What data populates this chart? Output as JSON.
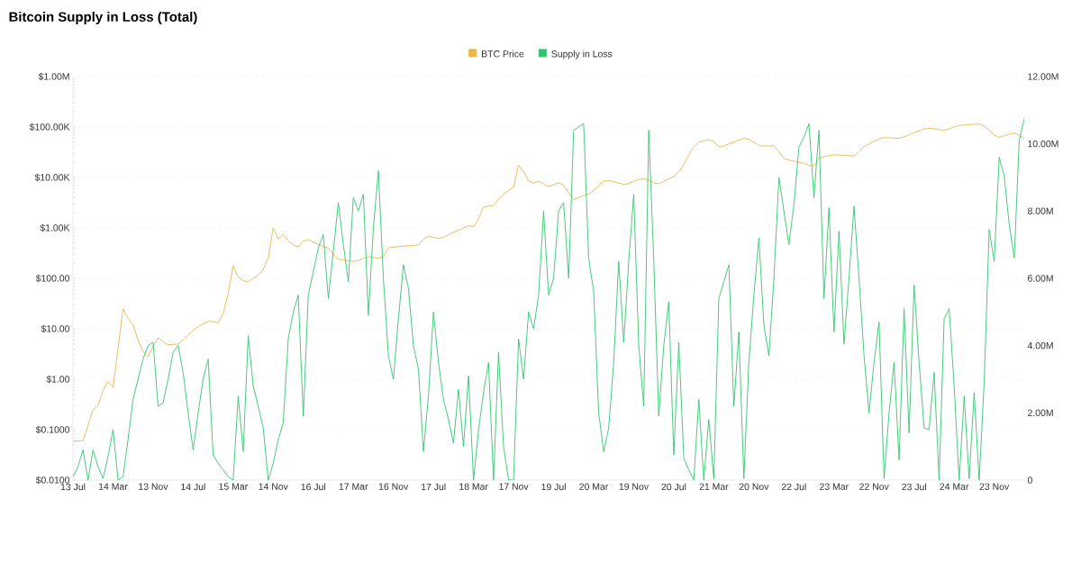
{
  "chart_data": {
    "type": "line",
    "title": "Bitcoin Supply in Loss (Total)",
    "categories": [
      "13 Jul",
      null,
      null,
      null,
      null,
      null,
      null,
      null,
      "14 Mar",
      null,
      null,
      null,
      null,
      null,
      null,
      null,
      "13 Nov",
      null,
      null,
      null,
      null,
      null,
      null,
      null,
      "14 Jul",
      null,
      null,
      null,
      null,
      null,
      null,
      null,
      "15 Mar",
      null,
      null,
      null,
      null,
      null,
      null,
      null,
      "14 Nov",
      null,
      null,
      null,
      null,
      null,
      null,
      null,
      "16 Jul",
      null,
      null,
      null,
      null,
      null,
      null,
      null,
      "17 Mar",
      null,
      null,
      null,
      null,
      null,
      null,
      null,
      "16 Nov",
      null,
      null,
      null,
      null,
      null,
      null,
      null,
      "17 Jul",
      null,
      null,
      null,
      null,
      null,
      null,
      null,
      "18 Mar",
      null,
      null,
      null,
      null,
      null,
      null,
      null,
      "17 Nov",
      null,
      null,
      null,
      null,
      null,
      null,
      null,
      "19 Jul",
      null,
      null,
      null,
      null,
      null,
      null,
      null,
      "20 Mar",
      null,
      null,
      null,
      null,
      null,
      null,
      null,
      "19 Nov",
      null,
      null,
      null,
      null,
      null,
      null,
      null,
      "20 Jul",
      null,
      null,
      null,
      null,
      null,
      null,
      null,
      "21 Mar",
      null,
      null,
      null,
      null,
      null,
      null,
      null,
      "20 Nov",
      null,
      null,
      null,
      null,
      null,
      null,
      null,
      "22 Jul",
      null,
      null,
      null,
      null,
      null,
      null,
      null,
      "23 Mar",
      null,
      null,
      null,
      null,
      null,
      null,
      null,
      "22 Nov",
      null,
      null,
      null,
      null,
      null,
      null,
      null,
      "23 Jul",
      null,
      null,
      null,
      null,
      null,
      null,
      null,
      "24 Mar",
      null,
      null,
      null,
      null,
      null,
      null,
      null,
      "23 Nov",
      null,
      null,
      null,
      null,
      null,
      null
    ],
    "ylim": [
      0.01,
      1000000
    ],
    "yticks": [
      {
        "value": 0.01,
        "label": "$0.0100"
      },
      {
        "value": 0.1,
        "label": "$0.1000"
      },
      {
        "value": 1,
        "label": "$1.00"
      },
      {
        "value": 10,
        "label": "$10.00"
      },
      {
        "value": 100,
        "label": "$100.00"
      },
      {
        "value": 1000,
        "label": "$1.00K"
      },
      {
        "value": 10000,
        "label": "$10.00K"
      },
      {
        "value": 100000,
        "label": "$100.00K"
      },
      {
        "value": 1000000,
        "label": "$1.00M"
      }
    ],
    "y2lim": [
      0,
      12
    ],
    "y2ticks": [
      {
        "value": 0,
        "label": "0"
      },
      {
        "value": 2,
        "label": "2.00M"
      },
      {
        "value": 4,
        "label": "4.00M"
      },
      {
        "value": 6,
        "label": "6.00M"
      },
      {
        "value": 8,
        "label": "8.00M"
      },
      {
        "value": 10,
        "label": "10.00M"
      },
      {
        "value": 12,
        "label": "12.00M"
      }
    ],
    "log": "y",
    "grid": "y",
    "legend": "top",
    "series": [
      {
        "name": "BTC Price",
        "color": "#eab54d",
        "values": [
          0.059,
          0.06,
          0.06,
          0.12,
          0.25,
          0.3,
          0.6,
          0.9,
          0.7,
          4,
          25,
          16,
          12,
          6,
          3.5,
          2.8,
          4.5,
          6.6,
          5.5,
          4.8,
          4.9,
          5,
          6,
          7.5,
          9.5,
          11,
          12.5,
          14,
          14,
          13,
          20,
          50,
          180,
          105,
          90,
          85,
          100,
          115,
          150,
          250,
          1000,
          600,
          750,
          550,
          460,
          420,
          550,
          580,
          520,
          470,
          430,
          400,
          300,
          240,
          230,
          225,
          215,
          225,
          250,
          270,
          260,
          250,
          270,
          400,
          415,
          425,
          435,
          445,
          450,
          460,
          600,
          680,
          650,
          620,
          650,
          730,
          820,
          900,
          1000,
          1100,
          1050,
          1500,
          2600,
          2700,
          2800,
          3700,
          4700,
          5500,
          6400,
          17500,
          13000,
          8500,
          7800,
          8400,
          7500,
          6500,
          7200,
          7900,
          7000,
          5000,
          3600,
          4000,
          4400,
          4700,
          5500,
          6800,
          8500,
          8700,
          8200,
          7700,
          7300,
          7600,
          8400,
          9000,
          9500,
          8700,
          7800,
          7500,
          8400,
          9400,
          10500,
          13000,
          18000,
          28000,
          40000,
          50000,
          53000,
          56000,
          52000,
          40000,
          42000,
          46000,
          50000,
          55000,
          60000,
          57000,
          50000,
          43000,
          42000,
          42000,
          43000,
          32000,
          24000,
          22000,
          21000,
          20000,
          19000,
          17500,
          16500,
          24000,
          26000,
          27000,
          28000,
          28000,
          27500,
          27000,
          26500,
          32000,
          41000,
          46000,
          52000,
          58000,
          62000,
          61000,
          60000,
          59000,
          64000,
          70000,
          77000,
          84000,
          91000,
          95000,
          92000,
          89000,
          86000,
          92000,
          100000,
          106000,
          110000,
          112000,
          113000,
          115000,
          105000,
          85000,
          70000,
          62000,
          67000,
          72000,
          76000,
          68000,
          60000
        ]
      },
      {
        "name": "Supply in Loss",
        "color": "#34c46f",
        "axis": "y2",
        "values": [
          0.1,
          0.4,
          0.9,
          0,
          0.9,
          0.4,
          0.05,
          0.7,
          1.5,
          0,
          0.1,
          1.2,
          2.4,
          3.0,
          3.6,
          4.0,
          4.1,
          2.2,
          2.3,
          3.0,
          3.8,
          4.0,
          3.2,
          2.0,
          0.9,
          2.0,
          3.0,
          3.6,
          0.75,
          0.5,
          0.3,
          0.1,
          0,
          2.5,
          0.85,
          4.3,
          2.8,
          2.2,
          1.55,
          0,
          0.5,
          1.2,
          1.7,
          4.2,
          5.0,
          5.5,
          1.9,
          5.5,
          6.2,
          6.9,
          7.3,
          5.4,
          6.8,
          8.25,
          7.0,
          5.9,
          8.4,
          8.0,
          8.5,
          4.9,
          7.5,
          9.2,
          6.0,
          3.7,
          3.0,
          4.8,
          6.4,
          5.7,
          4.0,
          3.3,
          0.85,
          2.5,
          5.0,
          3.5,
          2.4,
          1.8,
          1.1,
          2.7,
          1.0,
          3.1,
          0,
          1.5,
          2.6,
          3.5,
          0,
          3.8,
          1.0,
          0,
          0,
          4.2,
          3.0,
          5.0,
          4.5,
          5.5,
          8.0,
          5.5,
          6.0,
          8.0,
          8.25,
          6.0,
          10.4,
          10.5,
          10.6,
          6.6,
          5.6,
          2.0,
          0.85,
          1.55,
          3.5,
          6.5,
          4.1,
          6.5,
          8.5,
          4.0,
          2.2,
          10.4,
          6.55,
          1.9,
          4.0,
          5.3,
          0.75,
          4.1,
          0.65,
          0.3,
          0,
          2.4,
          0,
          1.8,
          0.04,
          5.4,
          5.9,
          6.4,
          2.2,
          4.4,
          0.04,
          3.5,
          5.5,
          7.2,
          4.6,
          3.7,
          6.0,
          9.0,
          8.0,
          7.0,
          8.2,
          9.9,
          10.2,
          10.6,
          8.4,
          10.4,
          5.4,
          8.1,
          4.4,
          7.4,
          4.05,
          6.0,
          8.15,
          6.0,
          3.7,
          2.0,
          3.5,
          4.7,
          0.04,
          2.0,
          3.5,
          0.6,
          5.1,
          1.4,
          5.8,
          3.5,
          1.55,
          1.5,
          3.2,
          0,
          4.8,
          5.1,
          2.8,
          0,
          2.5,
          0.04,
          2.6,
          0,
          2.9,
          7.45,
          6.5,
          9.6,
          9.05,
          7.6,
          6.6,
          10.1,
          10.75
        ]
      }
    ]
  }
}
